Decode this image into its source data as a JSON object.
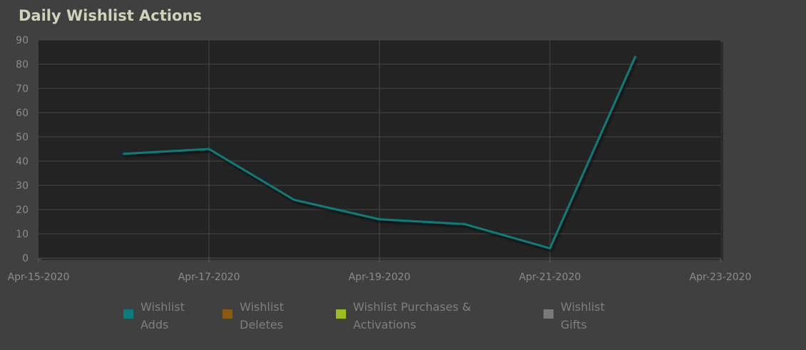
{
  "chart_data": {
    "type": "line",
    "title": "Daily Wishlist Actions",
    "ylim": [
      0,
      90
    ],
    "yticks": [
      0,
      10,
      20,
      30,
      40,
      50,
      60,
      70,
      80,
      90
    ],
    "xlim": [
      "2020-04-15",
      "2020-04-23"
    ],
    "xtick_labels": [
      "Apr-15-2020",
      "Apr-17-2020",
      "Apr-19-2020",
      "Apr-21-2020",
      "Apr-23-2020"
    ],
    "grid": true,
    "legend_position": "bottom",
    "series": [
      {
        "name": "Wishlist Adds",
        "color": "#0b7c7c",
        "points": [
          {
            "x": "2020-04-16",
            "y": 43
          },
          {
            "x": "2020-04-17",
            "y": 45
          },
          {
            "x": "2020-04-18",
            "y": 24
          },
          {
            "x": "2020-04-19",
            "y": 16
          },
          {
            "x": "2020-04-20",
            "y": 14
          },
          {
            "x": "2020-04-21",
            "y": 4
          },
          {
            "x": "2020-04-22",
            "y": 83
          }
        ]
      },
      {
        "name": "Wishlist Deletes",
        "color": "#8a5a0f",
        "points": []
      },
      {
        "name": "Wishlist Purchases & Activations",
        "color": "#9cbd1c",
        "points": []
      },
      {
        "name": "Wishlist Gifts",
        "color": "#7a7a7a",
        "points": []
      }
    ]
  },
  "legend": [
    {
      "label_line1": "Wishlist",
      "label_line2": "Adds",
      "color": "#0b7c7c"
    },
    {
      "label_line1": "Wishlist",
      "label_line2": "Deletes",
      "color": "#8a5a0f"
    },
    {
      "label_line1": "Wishlist Purchases &",
      "label_line2": "Activations",
      "color": "#9cbd1c"
    },
    {
      "label_line1": "Wishlist",
      "label_line2": "Gifts",
      "color": "#7a7a7a"
    }
  ]
}
